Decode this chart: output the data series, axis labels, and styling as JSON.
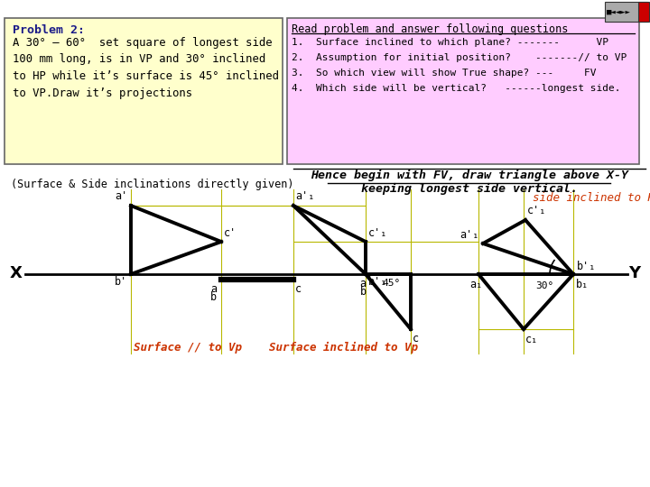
{
  "bg_color": "#ffffff",
  "problem_box_color": "#ffffcc",
  "read_box_color": "#ffccff",
  "problem_title": "Problem 2:",
  "problem_body": "A 30° – 60°  set square of longest side\n100 mm long, is in VP and 30° inclined\nto HP while it’s surface is 45° inclined\nto VP.Draw it’s projections",
  "read_title": "Read problem and answer following questions",
  "read_lines": [
    "1.  Surface inclined to which plane? -------      VP",
    "2.  Assumption for initial position?    -------// to VP",
    "3.  So which view will show True shape? ---     FV",
    "4.  Which side will be vertical?   ------longest side."
  ],
  "hence_text1": "Hence begin with FV, draw triangle above X-Y",
  "hence_text2": "keeping longest side vertical.",
  "surface_side_text": "(Surface & Side inclinations directly given)",
  "side_inclined_hp": "side inclined to Hp",
  "bottom_labels": "Surface // to Vp    Surface inclined to Vp"
}
